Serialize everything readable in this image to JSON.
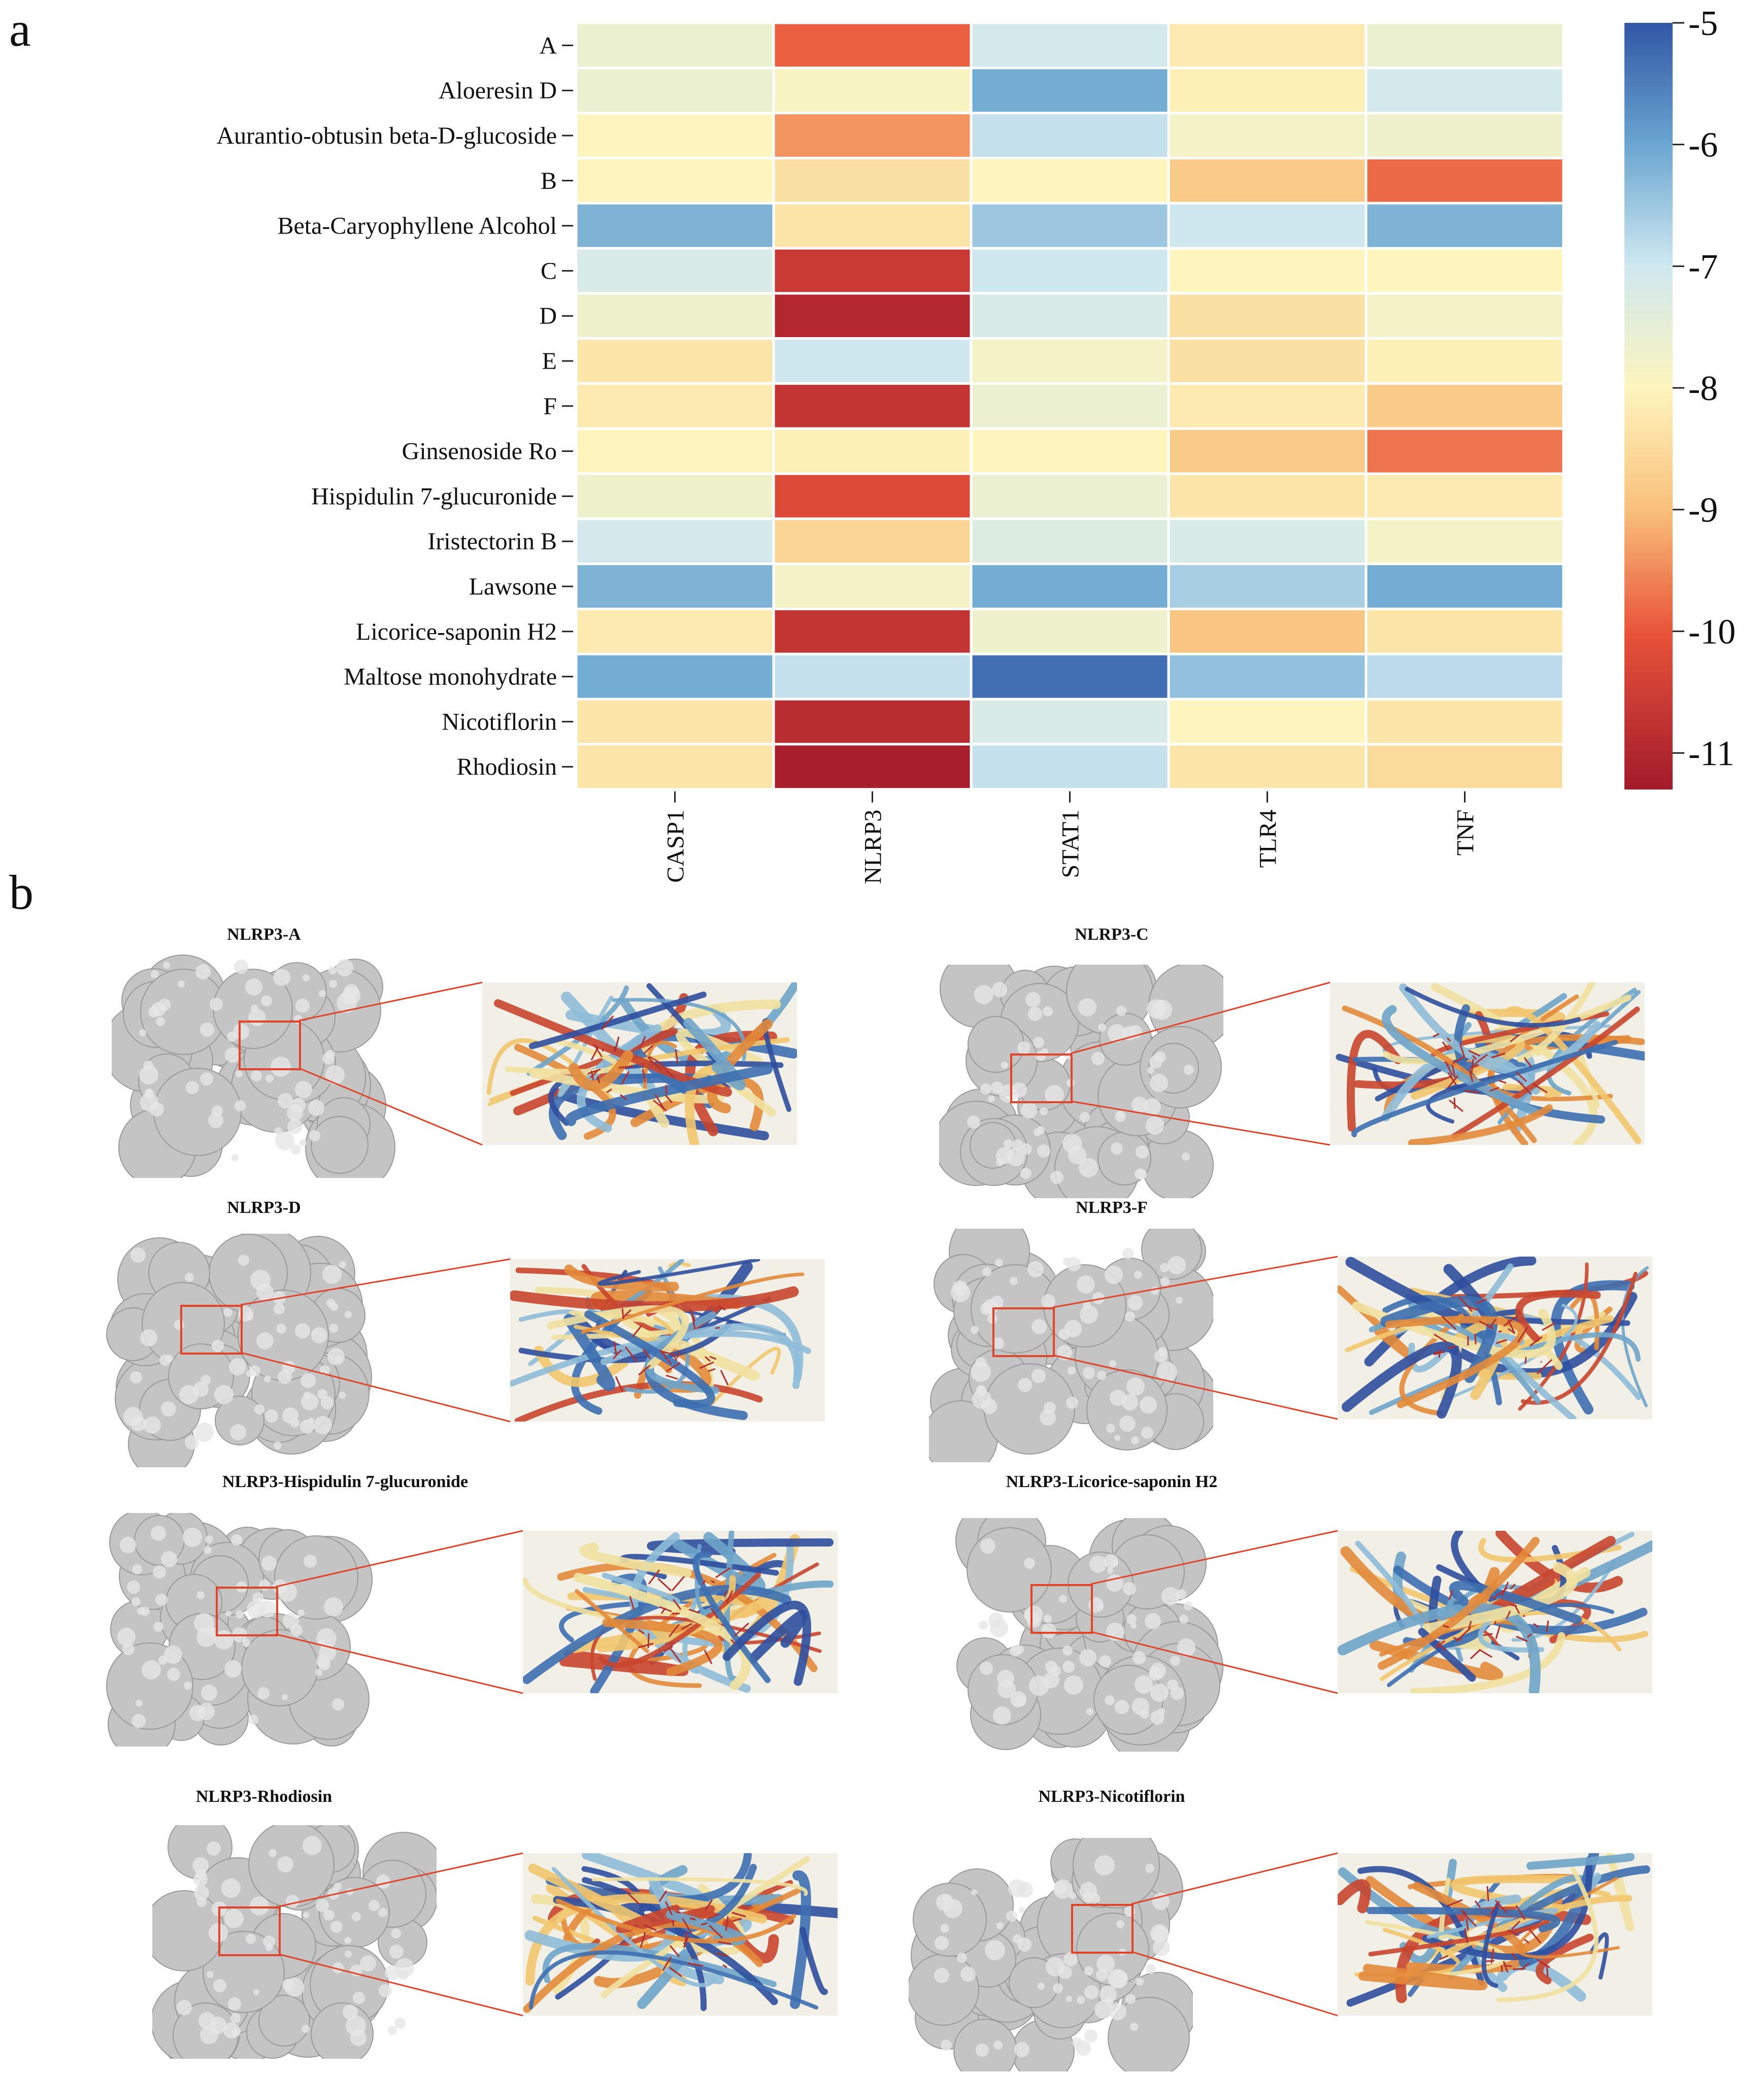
{
  "panels": {
    "a": "a",
    "b": "b"
  },
  "chart_data": {
    "type": "heatmap",
    "title": "",
    "rows": [
      "A",
      "Aloeresin D",
      "Aurantio-obtusin beta-D-glucoside",
      "B",
      "Beta-Caryophyllene Alcohol",
      "C",
      "D",
      "E",
      "F",
      "Ginsenoside Ro",
      "Hispidulin 7-glucuronide",
      "Iristectorin B",
      "Lawsone",
      "Licorice-saponin H2",
      "Maltose monohydrate",
      "Nicotiflorin",
      "Rhodiosin"
    ],
    "columns": [
      "CASP1",
      "NLRP3",
      "STAT1",
      "TLR4",
      "TNF"
    ],
    "values": [
      [
        -7.6,
        -9.9,
        -7.1,
        -8.2,
        -7.6
      ],
      [
        -7.6,
        -7.9,
        -6.1,
        -8.1,
        -7.1
      ],
      [
        -8.0,
        -9.4,
        -6.9,
        -7.8,
        -7.7
      ],
      [
        -8.0,
        -8.4,
        -8.0,
        -8.8,
        -9.8
      ],
      [
        -6.2,
        -8.3,
        -6.5,
        -7.0,
        -6.2
      ],
      [
        -7.2,
        -10.6,
        -7.0,
        -8.0,
        -8.0
      ],
      [
        -7.7,
        -11.0,
        -7.2,
        -8.4,
        -7.8
      ],
      [
        -8.3,
        -7.0,
        -7.8,
        -8.4,
        -8.1
      ],
      [
        -8.2,
        -10.7,
        -7.6,
        -8.2,
        -8.8
      ],
      [
        -8.0,
        -8.1,
        -8.0,
        -8.8,
        -9.7
      ],
      [
        -7.7,
        -10.2,
        -7.6,
        -8.3,
        -8.2
      ],
      [
        -7.1,
        -8.6,
        -7.3,
        -7.2,
        -7.8
      ],
      [
        -6.2,
        -7.8,
        -6.1,
        -6.6,
        -6.1
      ],
      [
        -8.2,
        -10.7,
        -7.7,
        -8.9,
        -8.3
      ],
      [
        -6.1,
        -6.9,
        -5.3,
        -6.4,
        -6.8
      ],
      [
        -8.3,
        -10.9,
        -7.2,
        -8.0,
        -8.3
      ],
      [
        -8.3,
        -11.2,
        -6.9,
        -8.3,
        -8.5
      ]
    ],
    "zlim": [
      -11.3,
      -5.0
    ],
    "colorbar": {
      "ticks": [
        -5,
        -6,
        -7,
        -8,
        -9,
        -10,
        -11
      ],
      "labels": [
        "-5",
        "-6",
        "-7",
        "-8",
        "-9",
        "-10",
        "-11"
      ]
    }
  },
  "docking": [
    {
      "title": "NLRP3-A"
    },
    {
      "title": "NLRP3-C"
    },
    {
      "title": "NLRP3-D"
    },
    {
      "title": "NLRP3-F"
    },
    {
      "title": "NLRP3-Hispidulin 7-glucuronide"
    },
    {
      "title": "NLRP3-Licorice-saponin H2"
    },
    {
      "title": "NLRP3-Rhodiosin"
    },
    {
      "title": "NLRP3-Nicotiflorin"
    }
  ],
  "colors": {
    "zoom_box": "#e0442a",
    "protein_surface": "#c8c8c8"
  }
}
